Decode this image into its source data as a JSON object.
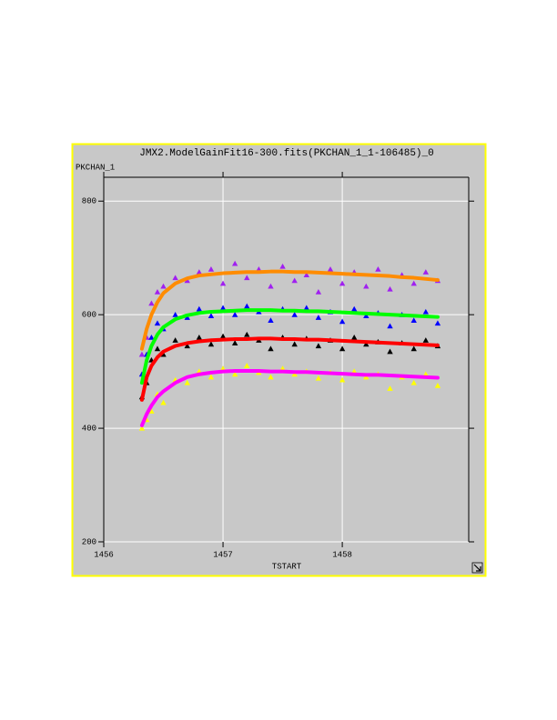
{
  "chart_data": {
    "type": "scatter",
    "title": "JMX2.ModelGainFit16-300.fits(PKCHAN_1_1-106485)_0",
    "y_label": "PKCHAN_1",
    "x_label": "TSTART",
    "x": [
      1456.32,
      1456.36,
      1456.4,
      1456.45,
      1456.5,
      1456.6,
      1456.7,
      1456.8,
      1456.9,
      1457.0,
      1457.1,
      1457.2,
      1457.3,
      1457.4,
      1457.5,
      1457.6,
      1457.7,
      1457.8,
      1457.9,
      1458.0,
      1458.1,
      1458.2,
      1458.3,
      1458.4,
      1458.5,
      1458.6,
      1458.7,
      1458.8
    ],
    "series": [
      {
        "mode": "markers",
        "color": "#a020f0",
        "values": [
          530,
          560,
          620,
          640,
          650,
          665,
          660,
          675,
          680,
          655,
          690,
          665,
          680,
          650,
          685,
          660,
          670,
          640,
          680,
          655,
          675,
          650,
          680,
          645,
          670,
          655,
          675,
          660
        ]
      },
      {
        "mode": "markers",
        "color": "#0000ff",
        "values": [
          495,
          530,
          560,
          585,
          575,
          600,
          595,
          610,
          598,
          612,
          600,
          615,
          605,
          590,
          610,
          600,
          612,
          595,
          605,
          588,
          610,
          598,
          603,
          580,
          600,
          590,
          605,
          585
        ]
      },
      {
        "mode": "markers",
        "color": "#000000",
        "values": [
          455,
          480,
          520,
          540,
          530,
          555,
          545,
          560,
          548,
          562,
          550,
          565,
          555,
          540,
          560,
          548,
          558,
          545,
          555,
          540,
          560,
          548,
          552,
          535,
          550,
          540,
          555,
          545
        ]
      },
      {
        "mode": "markers",
        "color": "#ffff00",
        "values": [
          400,
          415,
          430,
          460,
          445,
          485,
          480,
          500,
          490,
          505,
          495,
          510,
          498,
          490,
          505,
          495,
          500,
          488,
          498,
          485,
          500,
          490,
          495,
          470,
          490,
          480,
          495,
          475
        ]
      },
      {
        "mode": "lines",
        "color": "#ff8c00",
        "values": [
          540,
          575,
          600,
          622,
          638,
          655,
          664,
          669,
          671,
          673,
          674,
          675,
          675,
          676,
          676,
          675,
          675,
          674,
          673,
          672,
          671,
          670,
          669,
          668,
          666,
          665,
          663,
          661
        ]
      },
      {
        "mode": "lines",
        "color": "#00ff00",
        "values": [
          480,
          520,
          545,
          565,
          578,
          592,
          599,
          603,
          605,
          606,
          607,
          608,
          608,
          608,
          607,
          607,
          606,
          606,
          605,
          604,
          603,
          602,
          601,
          600,
          599,
          598,
          597,
          596
        ]
      },
      {
        "mode": "lines",
        "color": "#ff0000",
        "values": [
          450,
          490,
          510,
          525,
          535,
          545,
          550,
          553,
          555,
          556,
          557,
          557,
          558,
          558,
          557,
          557,
          556,
          556,
          555,
          554,
          553,
          552,
          551,
          550,
          549,
          548,
          547,
          546
        ]
      },
      {
        "mode": "lines",
        "color": "#ff00ff",
        "values": [
          405,
          425,
          440,
          455,
          465,
          480,
          490,
          495,
          498,
          500,
          501,
          501,
          501,
          500,
          500,
          499,
          499,
          498,
          497,
          496,
          495,
          494,
          494,
          493,
          492,
          491,
          490,
          489
        ]
      }
    ],
    "xlim": [
      1456,
      1459.06
    ],
    "ylim": [
      200,
      842
    ],
    "xticks": [
      1456,
      1457,
      1458
    ],
    "yticks": [
      200,
      400,
      600,
      800
    ],
    "grid": true
  }
}
